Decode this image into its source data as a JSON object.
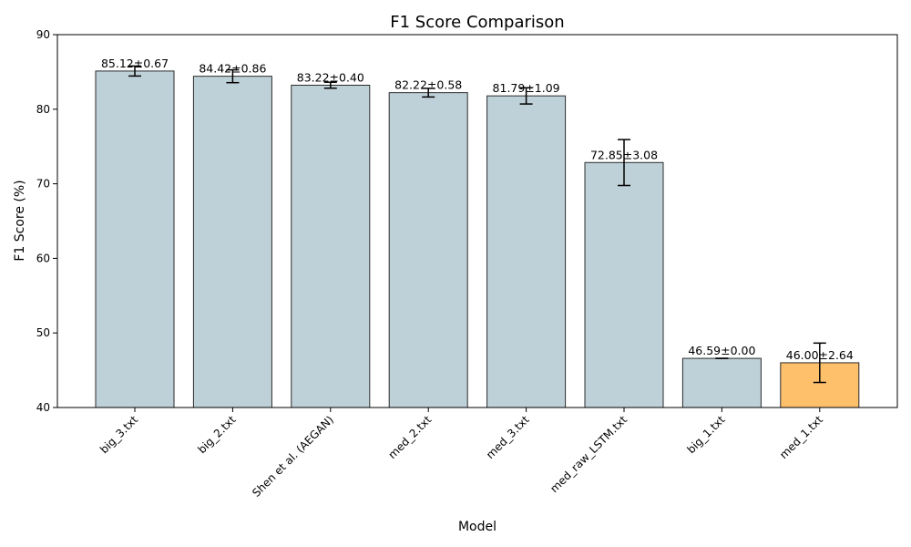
{
  "chart_data": {
    "type": "bar",
    "title": "F1 Score Comparison",
    "xlabel": "Model",
    "ylabel": "F1 Score (%)",
    "ylim": [
      40,
      90
    ],
    "yticks": [
      "40",
      "50",
      "60",
      "70",
      "80",
      "90"
    ],
    "grid": false,
    "categories": [
      "big_3.txt",
      "big_2.txt",
      "Shen et al. (AEGAN)",
      "med_2.txt",
      "med_3.txt",
      "med_raw_LSTM.txt",
      "big_1.txt",
      "med_1.txt"
    ],
    "values": [
      85.12,
      84.42,
      83.22,
      82.22,
      81.79,
      72.85,
      46.59,
      46.0
    ],
    "errors": [
      0.67,
      0.86,
      0.4,
      0.58,
      1.09,
      3.08,
      0.0,
      2.64
    ],
    "data_labels": [
      "85.12±0.67",
      "84.42±0.86",
      "83.22±0.40",
      "82.22±0.58",
      "81.79±1.09",
      "72.85±3.08",
      "46.59±0.00",
      "46.00±2.64"
    ],
    "bar_colors": [
      "#bfd1d8",
      "#bfd1d8",
      "#bfd1d8",
      "#bfd1d8",
      "#bfd1d8",
      "#bfd1d8",
      "#bfd1d8",
      "#fec06b"
    ],
    "bar_edge_color": "#2b2b2b"
  }
}
